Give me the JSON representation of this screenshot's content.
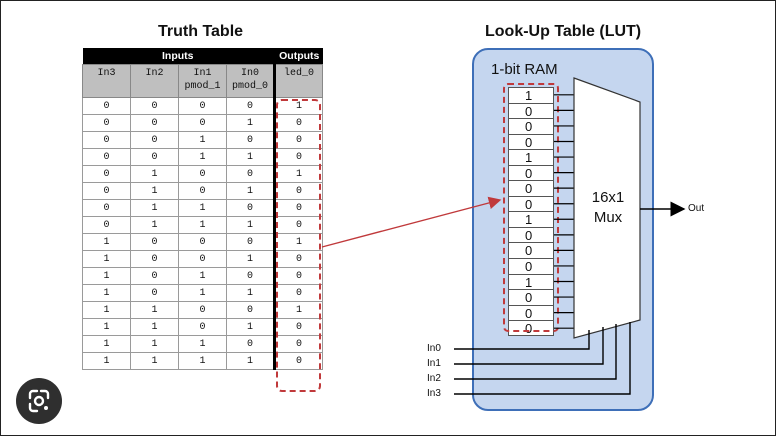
{
  "truth_table": {
    "title": "Truth Table",
    "group_inputs": "Inputs",
    "group_outputs": "Outputs",
    "headers": [
      {
        "line1": "In3",
        "line2": ""
      },
      {
        "line1": "In2",
        "line2": ""
      },
      {
        "line1": "In1",
        "line2": "pmod_1"
      },
      {
        "line1": "In0",
        "line2": "pmod_0"
      },
      {
        "line1": "led_0",
        "line2": ""
      }
    ],
    "rows": [
      [
        "0",
        "0",
        "0",
        "0",
        "1"
      ],
      [
        "0",
        "0",
        "0",
        "1",
        "0"
      ],
      [
        "0",
        "0",
        "1",
        "0",
        "0"
      ],
      [
        "0",
        "0",
        "1",
        "1",
        "0"
      ],
      [
        "0",
        "1",
        "0",
        "0",
        "1"
      ],
      [
        "0",
        "1",
        "0",
        "1",
        "0"
      ],
      [
        "0",
        "1",
        "1",
        "0",
        "0"
      ],
      [
        "0",
        "1",
        "1",
        "1",
        "0"
      ],
      [
        "1",
        "0",
        "0",
        "0",
        "1"
      ],
      [
        "1",
        "0",
        "0",
        "1",
        "0"
      ],
      [
        "1",
        "0",
        "1",
        "0",
        "0"
      ],
      [
        "1",
        "0",
        "1",
        "1",
        "0"
      ],
      [
        "1",
        "1",
        "0",
        "0",
        "1"
      ],
      [
        "1",
        "1",
        "0",
        "1",
        "0"
      ],
      [
        "1",
        "1",
        "1",
        "0",
        "0"
      ],
      [
        "1",
        "1",
        "1",
        "1",
        "0"
      ]
    ]
  },
  "lut": {
    "title": "Look-Up Table (LUT)",
    "ram_label": "1-bit RAM",
    "ram_bits": [
      "1",
      "0",
      "0",
      "0",
      "1",
      "0",
      "0",
      "0",
      "1",
      "0",
      "0",
      "0",
      "1",
      "0",
      "0",
      "0"
    ],
    "mux_line1": "16x1",
    "mux_line2": "Mux",
    "output_label": "Out",
    "select_inputs": [
      "In0",
      "In1",
      "In2",
      "In3"
    ]
  },
  "colors": {
    "lut_fill": "#c5d6ef",
    "lut_border": "#3e6fb8",
    "dash": "#c0393b",
    "arrow": "#c0393b"
  },
  "icons": {
    "lens": "google-lens-icon"
  }
}
